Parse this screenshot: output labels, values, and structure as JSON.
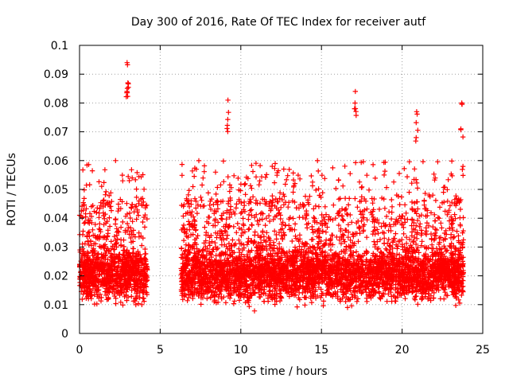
{
  "chart_data": {
    "type": "scatter",
    "title": "Day 300 of 2016, Rate Of TEC Index for receiver autf",
    "xlabel": "GPS time / hours",
    "ylabel": "ROTI / TECUs",
    "xlim": [
      0,
      25
    ],
    "ylim": [
      0,
      0.1
    ],
    "xticks": [
      0,
      5,
      10,
      15,
      20,
      25
    ],
    "xtick_labels": [
      "0",
      "5",
      "10",
      "15",
      "20",
      "25"
    ],
    "yticks": [
      0,
      0.01,
      0.02,
      0.03,
      0.04,
      0.05,
      0.06,
      0.07,
      0.08,
      0.09,
      0.1
    ],
    "ytick_labels": [
      "0",
      "0.01",
      "0.02",
      "0.03",
      "0.04",
      "0.05",
      "0.06",
      "0.07",
      "0.08",
      "0.09",
      "0.1"
    ],
    "grid": true,
    "marker": "+",
    "color": "#ff0000",
    "data_segments": [
      {
        "start": 0.0,
        "end": 4.2
      },
      {
        "start": 6.3,
        "end": 23.8
      }
    ],
    "notable_points": [
      {
        "x": 2.95,
        "y": 0.094
      },
      {
        "x": 3.0,
        "y": 0.087
      },
      {
        "x": 9.2,
        "y": 0.081
      },
      {
        "x": 17.1,
        "y": 0.084
      },
      {
        "x": 23.7,
        "y": 0.08
      },
      {
        "x": 20.9,
        "y": 0.077
      }
    ]
  }
}
